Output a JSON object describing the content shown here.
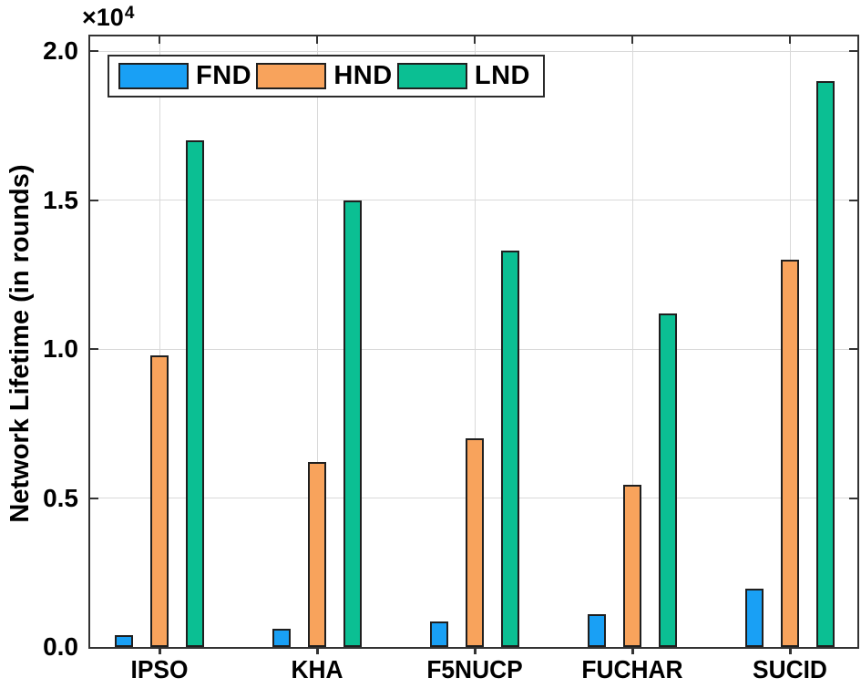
{
  "figure": {
    "background": "#ffffff"
  },
  "chart_data": {
    "type": "bar",
    "title": "",
    "xlabel": "",
    "ylabel": "Network Lifetime (in rounds)",
    "y_offset_base": "×10",
    "y_offset_exp": "4",
    "categories": [
      "IPSO",
      "KHA",
      "F5NUCP",
      "FUCHAR",
      "SUCID"
    ],
    "series": [
      {
        "name": "FND",
        "color": "#19A0F5",
        "values": [
          400,
          600,
          850,
          1100,
          1950
        ]
      },
      {
        "name": "HND",
        "color": "#F8A35C",
        "values": [
          9800,
          6200,
          7000,
          5450,
          13000
        ]
      },
      {
        "name": "LND",
        "color": "#0BBF93",
        "values": [
          17000,
          15000,
          13300,
          11200,
          19000
        ]
      }
    ],
    "ylim": [
      0,
      20500
    ],
    "yticks": [
      0,
      5000,
      10000,
      15000,
      20000
    ],
    "ytick_labels": [
      "0.0",
      "0.5",
      "1.0",
      "1.5",
      "2.0"
    ],
    "grid": true,
    "legend_position": "top-left",
    "bar_outline_color": "#1f1f1f",
    "grid_color": "#d9d9d9",
    "axis_color": "#333333"
  }
}
